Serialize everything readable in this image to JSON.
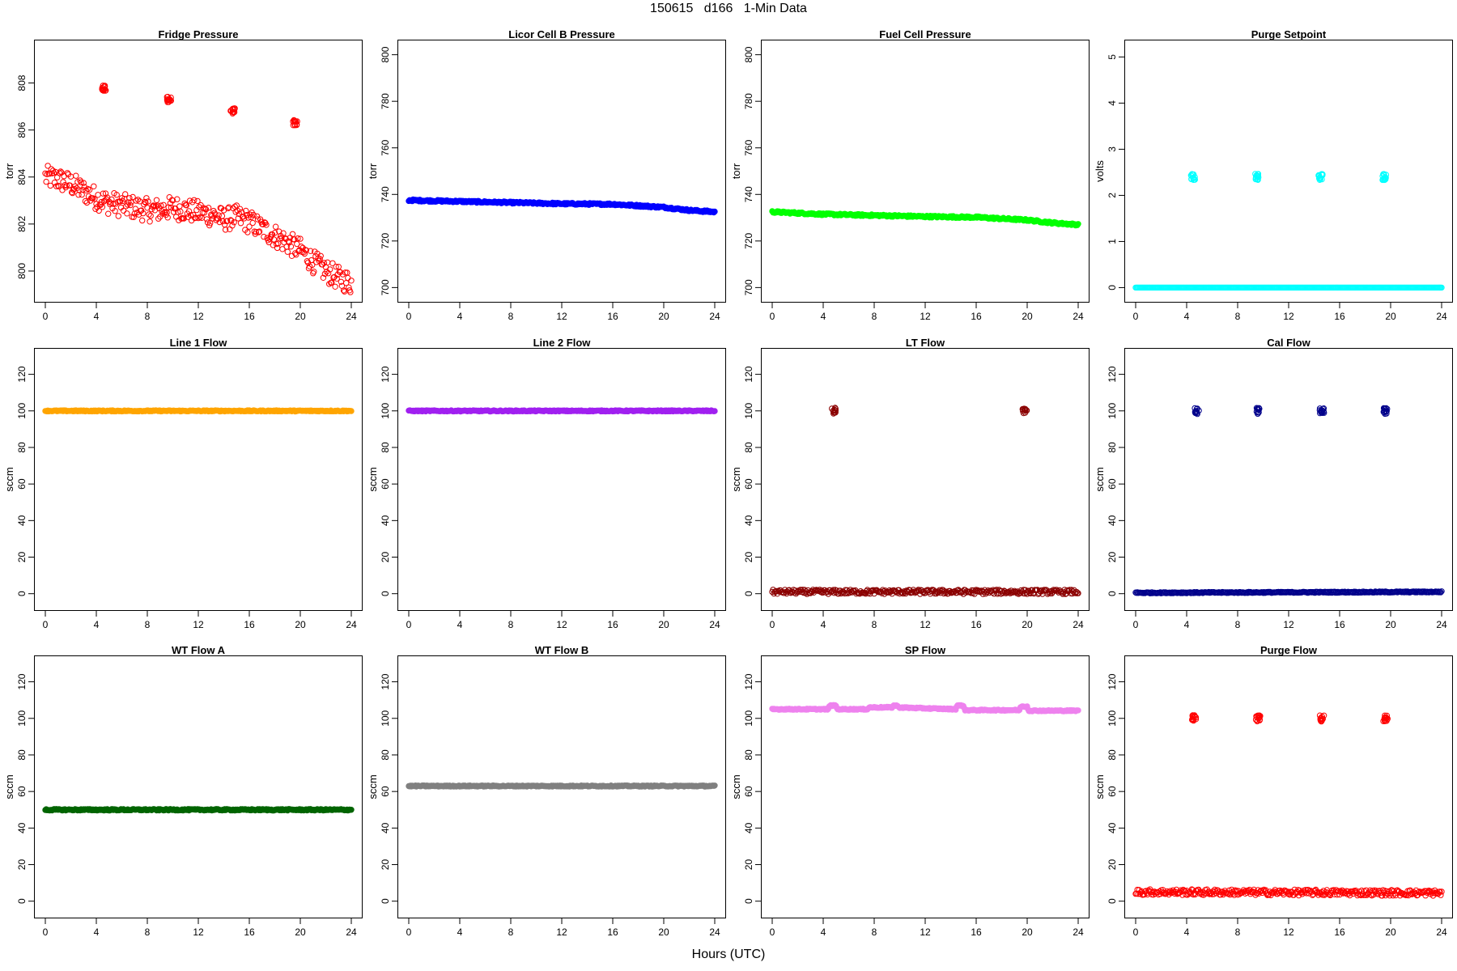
{
  "title": "150615   d166   1-Min Data",
  "xlabel": "Hours (UTC)",
  "chart_data": [
    {
      "type": "scatter",
      "title": "Fridge Pressure",
      "ylabel": "torr",
      "color": "#ff0000",
      "marker": "open-circle",
      "xlim": [
        0,
        24
      ],
      "ylim": [
        799,
        809.5
      ],
      "xticks": [
        0,
        4,
        8,
        12,
        16,
        20,
        24
      ],
      "yticks": [
        800,
        802,
        804,
        806,
        808
      ],
      "trend": [
        [
          0,
          804.0
        ],
        [
          1,
          803.9
        ],
        [
          2,
          803.7
        ],
        [
          3,
          803.4
        ],
        [
          4,
          803.1
        ],
        [
          5,
          802.9
        ],
        [
          6,
          802.8
        ],
        [
          7,
          802.7
        ],
        [
          8,
          802.6
        ],
        [
          9,
          802.6
        ],
        [
          10,
          802.7
        ],
        [
          11,
          802.6
        ],
        [
          12,
          802.5
        ],
        [
          13,
          802.4
        ],
        [
          14,
          802.2
        ],
        [
          15,
          802.3
        ],
        [
          16,
          802.1
        ],
        [
          17,
          801.8
        ],
        [
          18,
          801.5
        ],
        [
          19,
          801.2
        ],
        [
          20,
          800.9
        ],
        [
          21,
          800.4
        ],
        [
          22,
          800.0
        ],
        [
          23,
          799.7
        ],
        [
          24,
          799.5
        ]
      ],
      "spread": 0.5,
      "spikes": [
        {
          "x": 4.6,
          "y": 807.8
        },
        {
          "x": 9.7,
          "y": 807.3
        },
        {
          "x": 14.7,
          "y": 806.8
        },
        {
          "x": 19.6,
          "y": 806.3
        }
      ]
    },
    {
      "type": "scatter",
      "title": "Licor Cell B Pressure",
      "ylabel": "torr",
      "color": "#0000ff",
      "marker": "filled",
      "xlim": [
        0,
        24
      ],
      "ylim": [
        697,
        803
      ],
      "xticks": [
        0,
        4,
        8,
        12,
        16,
        20,
        24
      ],
      "yticks": [
        700,
        720,
        740,
        760,
        780,
        800
      ],
      "trend": [
        [
          0,
          737.5
        ],
        [
          4,
          737
        ],
        [
          8,
          736.5
        ],
        [
          12,
          736
        ],
        [
          16,
          735.8
        ],
        [
          20,
          734.5
        ],
        [
          22,
          733.2
        ],
        [
          24,
          732.5
        ]
      ],
      "spread": 0.4,
      "spikes": []
    },
    {
      "type": "scatter",
      "title": "Fuel Cell Pressure",
      "ylabel": "torr",
      "color": "#00ff00",
      "marker": "filled",
      "xlim": [
        0,
        24
      ],
      "ylim": [
        697,
        803
      ],
      "xticks": [
        0,
        4,
        8,
        12,
        16,
        20,
        24
      ],
      "yticks": [
        700,
        720,
        740,
        760,
        780,
        800
      ],
      "trend": [
        [
          0,
          732.5
        ],
        [
          4,
          731.5
        ],
        [
          8,
          731
        ],
        [
          12,
          730.5
        ],
        [
          16,
          730.2
        ],
        [
          20,
          729
        ],
        [
          22,
          727.8
        ],
        [
          24,
          727
        ]
      ],
      "spread": 0.4,
      "spikes": []
    },
    {
      "type": "scatter",
      "title": "Purge Setpoint",
      "ylabel": "volts",
      "color": "#00ffff",
      "marker": "open-circle",
      "xlim": [
        0,
        24
      ],
      "ylim": [
        -0.15,
        5.2
      ],
      "xticks": [
        0,
        4,
        8,
        12,
        16,
        20,
        24
      ],
      "yticks": [
        0,
        1,
        2,
        3,
        4,
        5
      ],
      "trend": [
        [
          0,
          0
        ],
        [
          24,
          0
        ]
      ],
      "spread": 0,
      "spikes": [
        {
          "x": 4.5,
          "y": 2.4
        },
        {
          "x": 9.5,
          "y": 2.4
        },
        {
          "x": 14.5,
          "y": 2.4
        },
        {
          "x": 19.5,
          "y": 2.4
        }
      ]
    },
    {
      "type": "scatter",
      "title": "Line 1 Flow",
      "ylabel": "sccm",
      "color": "#ffa500",
      "marker": "filled",
      "xlim": [
        0,
        24
      ],
      "ylim": [
        -5,
        130
      ],
      "xticks": [
        0,
        4,
        8,
        12,
        16,
        20,
        24
      ],
      "yticks": [
        0,
        20,
        40,
        60,
        80,
        100,
        120
      ],
      "trend": [
        [
          0,
          100
        ],
        [
          24,
          100
        ]
      ],
      "spread": 0.3,
      "spikes": []
    },
    {
      "type": "scatter",
      "title": "Line 2 Flow",
      "ylabel": "sccm",
      "color": "#a020f0",
      "marker": "filled",
      "xlim": [
        0,
        24
      ],
      "ylim": [
        -5,
        130
      ],
      "xticks": [
        0,
        4,
        8,
        12,
        16,
        20,
        24
      ],
      "yticks": [
        0,
        20,
        40,
        60,
        80,
        100,
        120
      ],
      "trend": [
        [
          0,
          100
        ],
        [
          24,
          100
        ]
      ],
      "spread": 0.3,
      "spikes": []
    },
    {
      "type": "scatter",
      "title": "LT Flow",
      "ylabel": "sccm",
      "color": "#8b0000",
      "marker": "open-circle",
      "xlim": [
        0,
        24
      ],
      "ylim": [
        -5,
        130
      ],
      "xticks": [
        0,
        4,
        8,
        12,
        16,
        20,
        24
      ],
      "yticks": [
        0,
        20,
        40,
        60,
        80,
        100,
        120
      ],
      "trend": [
        [
          0,
          1
        ],
        [
          24,
          1
        ]
      ],
      "spread": 1.2,
      "spikes": [
        {
          "x": 4.8,
          "y": 100
        },
        {
          "x": 19.8,
          "y": 100
        }
      ]
    },
    {
      "type": "scatter",
      "title": "Cal Flow",
      "ylabel": "sccm",
      "color": "#00008b",
      "marker": "open-circle",
      "xlim": [
        0,
        24
      ],
      "ylim": [
        -5,
        130
      ],
      "xticks": [
        0,
        4,
        8,
        12,
        16,
        20,
        24
      ],
      "yticks": [
        0,
        20,
        40,
        60,
        80,
        100,
        120
      ],
      "trend": [
        [
          0,
          0.5
        ],
        [
          24,
          1
        ]
      ],
      "spread": 0.3,
      "spikes": [
        {
          "x": 4.8,
          "y": 100
        },
        {
          "x": 9.6,
          "y": 100
        },
        {
          "x": 14.6,
          "y": 100
        },
        {
          "x": 19.6,
          "y": 100
        }
      ]
    },
    {
      "type": "scatter",
      "title": "WT Flow A",
      "ylabel": "sccm",
      "color": "#006400",
      "marker": "filled",
      "xlim": [
        0,
        24
      ],
      "ylim": [
        -5,
        130
      ],
      "xticks": [
        0,
        4,
        8,
        12,
        16,
        20,
        24
      ],
      "yticks": [
        0,
        20,
        40,
        60,
        80,
        100,
        120
      ],
      "trend": [
        [
          0,
          50
        ],
        [
          24,
          50
        ]
      ],
      "spread": 0.4,
      "spikes": []
    },
    {
      "type": "scatter",
      "title": "WT Flow B",
      "ylabel": "sccm",
      "color": "#808080",
      "marker": "filled",
      "xlim": [
        0,
        24
      ],
      "ylim": [
        -5,
        130
      ],
      "xticks": [
        0,
        4,
        8,
        12,
        16,
        20,
        24
      ],
      "yticks": [
        0,
        20,
        40,
        60,
        80,
        100,
        120
      ],
      "trend": [
        [
          0,
          63
        ],
        [
          24,
          63
        ]
      ],
      "spread": 0.3,
      "spikes": []
    },
    {
      "type": "scatter",
      "title": "SP Flow",
      "ylabel": "sccm",
      "color": "#ee82ee",
      "marker": "filled",
      "xlim": [
        0,
        24
      ],
      "ylim": [
        -5,
        130
      ],
      "xticks": [
        0,
        4,
        8,
        12,
        16,
        20,
        24
      ],
      "yticks": [
        0,
        20,
        40,
        60,
        80,
        100,
        120
      ],
      "trend": [
        [
          0,
          105
        ],
        [
          4.4,
          105
        ],
        [
          4.5,
          107
        ],
        [
          5.0,
          107
        ],
        [
          5.1,
          105
        ],
        [
          7.5,
          105
        ],
        [
          7.6,
          106
        ],
        [
          9.4,
          106
        ],
        [
          9.5,
          107
        ],
        [
          9.8,
          107
        ],
        [
          9.9,
          106
        ],
        [
          12,
          105.5
        ],
        [
          14.4,
          105
        ],
        [
          14.5,
          107
        ],
        [
          15.0,
          107
        ],
        [
          15.1,
          104.5
        ],
        [
          19.4,
          104.5
        ],
        [
          19.5,
          106.5
        ],
        [
          20,
          106.5
        ],
        [
          20.1,
          104.2
        ],
        [
          24,
          104.2
        ]
      ],
      "spread": 0.3,
      "spikes": []
    },
    {
      "type": "scatter",
      "title": "Purge Flow",
      "ylabel": "sccm",
      "color": "#ff0000",
      "marker": "open-circle",
      "xlim": [
        0,
        24
      ],
      "ylim": [
        -5,
        130
      ],
      "xticks": [
        0,
        4,
        8,
        12,
        16,
        20,
        24
      ],
      "yticks": [
        0,
        20,
        40,
        60,
        80,
        100,
        120
      ],
      "trend": [
        [
          0,
          5
        ],
        [
          24,
          4.5
        ]
      ],
      "spread": 1.6,
      "spikes": [
        {
          "x": 4.6,
          "y": 100
        },
        {
          "x": 9.6,
          "y": 100
        },
        {
          "x": 14.6,
          "y": 100
        },
        {
          "x": 19.6,
          "y": 100
        }
      ]
    }
  ]
}
